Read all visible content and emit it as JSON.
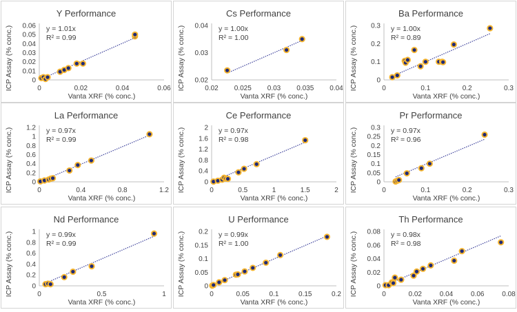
{
  "chart_data": [
    {
      "type": "scatter",
      "title": "Y Performance",
      "xlabel": "Vanta XRF (% conc.)",
      "ylabel": "ICP Assay (% conc.)",
      "equation": "y = 1.01x",
      "r2": "R² = 0.99",
      "slope": 1.01,
      "xlim": [
        0,
        0.06
      ],
      "ylim": [
        0,
        0.06
      ],
      "xticks": [
        "0",
        "0.02",
        "0.04",
        "0.06"
      ],
      "yticks": [
        "0",
        "0.01",
        "0.02",
        "0.03",
        "0.04",
        "0.05",
        "0.06"
      ],
      "x": [
        0.001,
        0.002,
        0.003,
        0.004,
        0.01,
        0.012,
        0.014,
        0.018,
        0.021,
        0.046,
        0.046
      ],
      "y": [
        0.002,
        0.003,
        0.001,
        0.003,
        0.009,
        0.011,
        0.013,
        0.018,
        0.018,
        0.048,
        0.05
      ]
    },
    {
      "type": "scatter",
      "title": "Cs Performance",
      "xlabel": "Vanta XRF (% conc.)",
      "ylabel": "ICP Assay (% conc.)",
      "equation": "y = 1.00x",
      "r2": "R² = 1.00",
      "slope": 1.0,
      "xlim": [
        0.02,
        0.04
      ],
      "ylim": [
        0.02,
        0.04
      ],
      "xticks": [
        "0.02",
        "0.025",
        "0.03",
        "0.035",
        "0.04"
      ],
      "yticks": [
        "0.02",
        "0.03",
        "0.04"
      ],
      "x": [
        0.0225,
        0.032,
        0.0345
      ],
      "y": [
        0.0235,
        0.031,
        0.035
      ]
    },
    {
      "type": "scatter",
      "title": "Ba Performance",
      "xlabel": "Vanta XRF (% conc.)",
      "ylabel": "ICP Assay (% conc.)",
      "equation": "y = 1.00x",
      "r2": "R² = 0.89",
      "slope": 1.0,
      "xlim": [
        0,
        0.3
      ],
      "ylim": [
        0,
        0.3
      ],
      "xticks": [
        "0",
        "0.1",
        "0.2",
        "0.3"
      ],
      "yticks": [
        "0",
        "0.1",
        "0.2",
        "0.3"
      ],
      "x": [
        0.02,
        0.032,
        0.05,
        0.052,
        0.057,
        0.073,
        0.088,
        0.1,
        0.132,
        0.14,
        0.142,
        0.168,
        0.255
      ],
      "y": [
        0.015,
        0.025,
        0.105,
        0.095,
        0.11,
        0.165,
        0.075,
        0.1,
        0.1,
        0.1,
        0.098,
        0.195,
        0.285
      ]
    },
    {
      "type": "scatter",
      "title": "La Performance",
      "xlabel": "Vanta XRF (% conc.)",
      "ylabel": "ICP Assay (% conc.)",
      "equation": "y = 0.97x",
      "r2": "R² = 0.99",
      "slope": 0.97,
      "xlim": [
        0,
        1.2
      ],
      "ylim": [
        0,
        1.2
      ],
      "xticks": [
        "0",
        "0.4",
        "0.8",
        "1.2"
      ],
      "yticks": [
        "0",
        "0.2",
        "0.4",
        "0.6",
        "0.8",
        "1",
        "1.2"
      ],
      "x": [
        0.01,
        0.05,
        0.09,
        0.11,
        0.13,
        0.29,
        0.37,
        0.5,
        1.06
      ],
      "y": [
        0.01,
        0.03,
        0.05,
        0.07,
        0.08,
        0.25,
        0.37,
        0.47,
        1.05
      ]
    },
    {
      "type": "scatter",
      "title": "Ce Performance",
      "xlabel": "Vanta XRF (% conc.)",
      "ylabel": "ICP Assay (% conc.)",
      "equation": "y = 0.97x",
      "r2": "R² = 0.98",
      "slope": 0.97,
      "xlim": [
        0,
        2
      ],
      "ylim": [
        0,
        2
      ],
      "xticks": [
        "0",
        "0.5",
        "1",
        "1.5",
        "2"
      ],
      "yticks": [
        "0",
        "0.4",
        "0.8",
        "1.2",
        "1.6",
        "2"
      ],
      "x": [
        0.03,
        0.1,
        0.17,
        0.2,
        0.23,
        0.26,
        0.43,
        0.52,
        0.72,
        1.5
      ],
      "y": [
        0.01,
        0.04,
        0.08,
        0.15,
        0.12,
        0.11,
        0.35,
        0.48,
        0.65,
        1.53
      ]
    },
    {
      "type": "scatter",
      "title": "Pr Performance",
      "xlabel": "Vanta XRF (% conc.)",
      "ylabel": "ICP Assay (% conc.)",
      "equation": "y = 0.97x",
      "r2": "R² = 0.96",
      "slope": 0.97,
      "xlim": [
        0,
        0.3
      ],
      "ylim": [
        0,
        0.3
      ],
      "xticks": [
        "0",
        "0.1",
        "0.2",
        "0.3"
      ],
      "yticks": [
        "0",
        "0.05",
        "0.1",
        "0.15",
        "0.2",
        "0.25",
        "0.3"
      ],
      "x": [
        0.028,
        0.032,
        0.036,
        0.055,
        0.09,
        0.11,
        0.242
      ],
      "y": [
        0.002,
        0.006,
        0.01,
        0.047,
        0.075,
        0.1,
        0.26
      ]
    },
    {
      "type": "scatter",
      "title": "Nd Performance",
      "xlabel": "Vanta XRF (% conc.)",
      "ylabel": "ICP Assay (% conc.)",
      "equation": "y = 0.99x",
      "r2": "R² = 0.99",
      "slope": 0.99,
      "xlim": [
        0,
        1
      ],
      "ylim": [
        0,
        1
      ],
      "xticks": [
        "0",
        "0.5",
        "1"
      ],
      "yticks": [
        "0",
        "0.2",
        "0.4",
        "0.6",
        "0.8",
        "1"
      ],
      "x": [
        0.05,
        0.07,
        0.09,
        0.2,
        0.27,
        0.42,
        0.92
      ],
      "y": [
        0.03,
        0.04,
        0.03,
        0.16,
        0.26,
        0.36,
        0.96
      ]
    },
    {
      "type": "scatter",
      "title": "U Performance",
      "xlabel": "Vanta XRF (% conc.)",
      "ylabel": "ICP Assay (% conc.)",
      "equation": "y = 0.99x",
      "r2": "R² = 1.00",
      "slope": 0.99,
      "xlim": [
        0,
        0.2
      ],
      "ylim": [
        0,
        0.2
      ],
      "xticks": [
        "0",
        "0.05",
        "0.1",
        "0.15",
        "0.2"
      ],
      "yticks": [
        "0",
        "0.05",
        "0.1",
        "0.15",
        "0.2"
      ],
      "x": [
        0.001,
        0.003,
        0.012,
        0.021,
        0.039,
        0.042,
        0.053,
        0.066,
        0.087,
        0.11,
        0.185
      ],
      "y": [
        0.001,
        0.003,
        0.013,
        0.021,
        0.041,
        0.042,
        0.053,
        0.066,
        0.085,
        0.113,
        0.18
      ]
    },
    {
      "type": "scatter",
      "title": "Th Performance",
      "xlabel": "Vanta XRF (% conc.)",
      "ylabel": "ICP Assay (% conc.)",
      "equation": "y = 0.98x",
      "r2": "R² = 0.98",
      "slope": 0.98,
      "xlim": [
        0,
        0.08
      ],
      "ylim": [
        0,
        0.08
      ],
      "xticks": [
        "0",
        "0.02",
        "0.04",
        "0.06",
        "0.08"
      ],
      "yticks": [
        "0",
        "0.02",
        "0.04",
        "0.06",
        "0.08"
      ],
      "x": [
        0.001,
        0.003,
        0.005,
        0.006,
        0.007,
        0.011,
        0.019,
        0.021,
        0.025,
        0.03,
        0.045,
        0.05,
        0.075
      ],
      "y": [
        0.001,
        0.001,
        0.005,
        0.004,
        0.012,
        0.009,
        0.015,
        0.021,
        0.025,
        0.03,
        0.037,
        0.051,
        0.064
      ]
    }
  ],
  "colors": {
    "marker_fill": "#1f2a78",
    "marker_edge": "#f5b530",
    "trendline": "#3a3f9a",
    "axis": "#bfbfbf",
    "text": "#404040"
  }
}
